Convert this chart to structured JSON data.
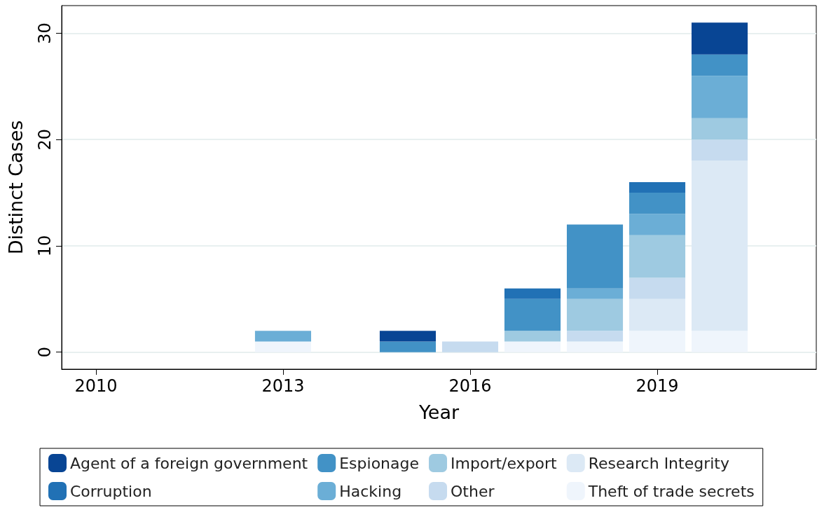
{
  "chart_data": {
    "type": "bar",
    "stacked": true,
    "xlabel": "Year",
    "ylabel": "Distinct Cases",
    "x": [
      2013,
      2015,
      2016,
      2017,
      2018,
      2019,
      2020
    ],
    "xlim": [
      2009.45,
      2021.55
    ],
    "xticks": [
      2010,
      2013,
      2016,
      2019
    ],
    "ylim": [
      -1.6,
      32.6
    ],
    "yticks": [
      0,
      10,
      20,
      30
    ],
    "grid": "y",
    "legend": "bottom",
    "series": [
      {
        "name": "Theft of trade secrets",
        "color": "#eff5fc",
        "values": [
          1,
          null,
          null,
          1,
          1,
          2,
          2
        ]
      },
      {
        "name": "Research Integrity",
        "color": "#dce9f5",
        "values": [
          null,
          null,
          null,
          null,
          null,
          3,
          16
        ]
      },
      {
        "name": "Other",
        "color": "#c6dbef",
        "values": [
          null,
          null,
          1,
          null,
          1,
          2,
          2
        ]
      },
      {
        "name": "Import/export",
        "color": "#9ecae1",
        "values": [
          null,
          null,
          null,
          1,
          3,
          4,
          2
        ]
      },
      {
        "name": "Hacking",
        "color": "#6baed6",
        "values": [
          1,
          null,
          null,
          null,
          1,
          2,
          4
        ]
      },
      {
        "name": "Espionage",
        "color": "#4292c6",
        "values": [
          null,
          1,
          null,
          3,
          6,
          2,
          2
        ]
      },
      {
        "name": "Corruption",
        "color": "#2171b5",
        "values": [
          null,
          null,
          null,
          1,
          null,
          1,
          null
        ]
      },
      {
        "name": "Agent of a foreign government",
        "color": "#084594",
        "values": [
          null,
          1,
          null,
          null,
          null,
          null,
          3
        ]
      }
    ]
  }
}
